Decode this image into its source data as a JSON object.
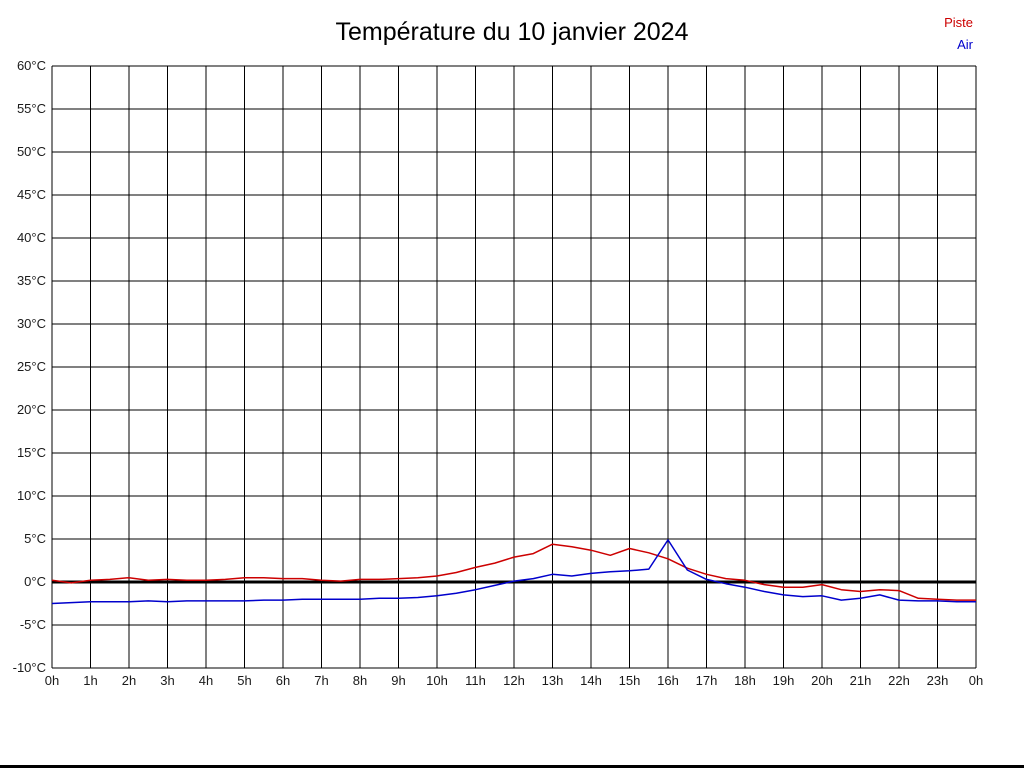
{
  "chart_data": {
    "type": "line",
    "title": "Température du 10 janvier 2024",
    "xlabel": "",
    "ylabel": "",
    "xlim": [
      0,
      24
    ],
    "ylim": [
      -10,
      60
    ],
    "grid": true,
    "zero_line": true,
    "legend_position": "top-right",
    "x_ticks": [
      "0h",
      "1h",
      "2h",
      "3h",
      "4h",
      "5h",
      "6h",
      "7h",
      "8h",
      "9h",
      "10h",
      "11h",
      "12h",
      "13h",
      "14h",
      "15h",
      "16h",
      "17h",
      "18h",
      "19h",
      "20h",
      "21h",
      "22h",
      "23h",
      "0h"
    ],
    "y_ticks": [
      "60°C",
      "55°C",
      "50°C",
      "45°C",
      "40°C",
      "35°C",
      "30°C",
      "25°C",
      "20°C",
      "15°C",
      "10°C",
      "5°C",
      "0°C",
      "-5°C",
      "-10°C"
    ],
    "legend": [
      {
        "label": "Piste",
        "color": "#cc0000"
      },
      {
        "label": "Air",
        "color": "#0000cc"
      }
    ],
    "series": [
      {
        "name": "Piste",
        "color": "#cc0000",
        "x": [
          0,
          0.5,
          1,
          1.5,
          2,
          2.5,
          3,
          3.5,
          4,
          4.5,
          5,
          5.5,
          6,
          6.5,
          7,
          7.5,
          8,
          8.5,
          9,
          9.5,
          10,
          10.5,
          11,
          11.5,
          12,
          12.5,
          13,
          13.5,
          14,
          14.5,
          15,
          15.5,
          16,
          16.5,
          17,
          17.5,
          18,
          18.5,
          19,
          19.5,
          20,
          20.5,
          21,
          21.5,
          22,
          22.5,
          23,
          23.5,
          24
        ],
        "y": [
          0.2,
          -0.1,
          0.2,
          0.3,
          0.5,
          0.2,
          0.3,
          0.2,
          0.2,
          0.3,
          0.5,
          0.5,
          0.4,
          0.4,
          0.2,
          0.1,
          0.3,
          0.3,
          0.4,
          0.5,
          0.7,
          1.1,
          1.7,
          2.2,
          2.9,
          3.3,
          4.4,
          4.1,
          3.7,
          3.1,
          3.9,
          3.4,
          2.7,
          1.6,
          0.9,
          0.4,
          0.2,
          -0.3,
          -0.6,
          -0.6,
          -0.3,
          -0.9,
          -1.1,
          -0.9,
          -1.0,
          -1.9,
          -2.0,
          -2.1,
          -2.1
        ]
      },
      {
        "name": "Air",
        "color": "#0000cc",
        "x": [
          0,
          0.5,
          1,
          1.5,
          2,
          2.5,
          3,
          3.5,
          4,
          4.5,
          5,
          5.5,
          6,
          6.5,
          7,
          7.5,
          8,
          8.5,
          9,
          9.5,
          10,
          10.5,
          11,
          11.5,
          12,
          12.5,
          13,
          13.5,
          14,
          14.5,
          15,
          15.5,
          16,
          16.5,
          17,
          17.5,
          18,
          18.5,
          19,
          19.5,
          20,
          20.5,
          21,
          21.5,
          22,
          22.5,
          23,
          23.5,
          24
        ],
        "y": [
          -2.5,
          -2.4,
          -2.3,
          -2.3,
          -2.3,
          -2.2,
          -2.3,
          -2.2,
          -2.2,
          -2.2,
          -2.2,
          -2.1,
          -2.1,
          -2.0,
          -2.0,
          -2.0,
          -2.0,
          -1.9,
          -1.9,
          -1.8,
          -1.6,
          -1.3,
          -0.9,
          -0.4,
          0.1,
          0.4,
          0.9,
          0.7,
          1.0,
          1.2,
          1.3,
          1.5,
          4.9,
          1.4,
          0.3,
          -0.2,
          -0.6,
          -1.1,
          -1.5,
          -1.7,
          -1.6,
          -2.1,
          -1.9,
          -1.5,
          -2.1,
          -2.2,
          -2.2,
          -2.3,
          -2.3
        ]
      }
    ]
  }
}
